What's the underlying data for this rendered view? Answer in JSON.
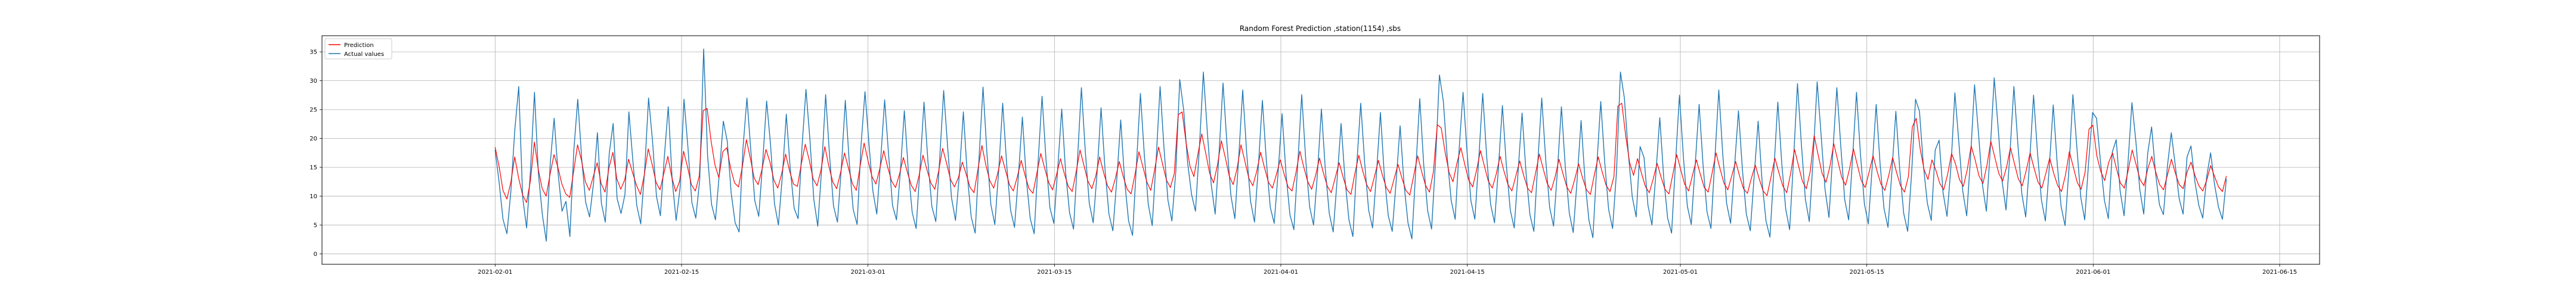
{
  "chart_data": {
    "type": "line",
    "title": "Random Forest Prediction ,station(1154) ,sbs",
    "xlabel": "",
    "ylabel": "",
    "x_range": [
      "2021-01-19",
      "2021-06-18"
    ],
    "ylim": [
      -1.8,
      37.8
    ],
    "x_tick_labels": [
      "2021-02-01",
      "2021-02-15",
      "2021-03-01",
      "2021-03-15",
      "2021-04-01",
      "2021-04-15",
      "2021-05-01",
      "2021-05-15",
      "2021-06-01",
      "2021-06-15"
    ],
    "y_ticks": [
      0,
      5,
      10,
      15,
      20,
      25,
      30,
      35
    ],
    "grid": true,
    "legend_position": "top-left",
    "data_start": "2021-02-01",
    "data_end": "2021-06-11",
    "series": [
      {
        "name": "Prediction",
        "color": "#ff0000",
        "values": [
          18.5,
          15.2,
          11.0,
          9.5,
          12.4,
          16.8,
          13.1,
          10.2,
          8.9,
          12.7,
          19.4,
          14.6,
          11.3,
          10.0,
          13.8,
          17.2,
          15.0,
          12.1,
          10.4,
          9.8,
          14.3,
          18.9,
          16.2,
          12.5,
          11.0,
          13.4,
          15.8,
          12.2,
          10.7,
          14.9,
          17.6,
          13.0,
          11.2,
          12.8,
          16.4,
          14.1,
          11.9,
          10.3,
          13.7,
          18.2,
          15.5,
          12.4,
          11.1,
          14.0,
          16.9,
          13.3,
          10.8,
          12.6,
          17.8,
          15.1,
          12.0,
          10.9,
          13.5,
          24.8,
          25.2,
          19.6,
          15.4,
          13.2,
          17.7,
          18.4,
          14.8,
          12.3,
          11.6,
          15.2,
          19.8,
          16.6,
          13.1,
          12.0,
          14.7,
          18.1,
          15.9,
          12.8,
          11.4,
          13.9,
          17.3,
          14.4,
          12.1,
          11.7,
          15.6,
          19.0,
          16.3,
          13.0,
          11.8,
          14.5,
          18.6,
          15.2,
          12.5,
          11.3,
          14.1,
          17.5,
          14.9,
          12.2,
          11.0,
          15.3,
          19.2,
          16.1,
          13.4,
          12.1,
          14.8,
          17.9,
          15.0,
          12.6,
          11.5,
          13.8,
          16.7,
          14.2,
          11.9,
          10.8,
          13.6,
          17.1,
          14.6,
          12.3,
          11.2,
          14.4,
          18.3,
          15.7,
          12.9,
          11.6,
          13.2,
          15.9,
          13.8,
          11.5,
          10.6,
          14.7,
          18.8,
          15.4,
          12.7,
          11.4,
          13.9,
          17.0,
          14.5,
          12.0,
          10.9,
          13.3,
          16.2,
          13.6,
          11.3,
          10.5,
          14.0,
          17.4,
          14.8,
          12.4,
          11.1,
          13.7,
          16.5,
          13.9,
          11.7,
          10.8,
          14.2,
          18.0,
          15.3,
          12.6,
          11.3,
          13.5,
          16.8,
          14.1,
          11.8,
          10.7,
          13.1,
          16.0,
          13.4,
          11.2,
          10.4,
          13.8,
          17.7,
          15.1,
          12.5,
          11.0,
          14.6,
          18.5,
          15.6,
          12.8,
          11.5,
          13.9,
          24.1,
          24.6,
          19.3,
          15.2,
          13.4,
          17.2,
          20.8,
          17.5,
          14.0,
          12.3,
          15.4,
          19.6,
          16.7,
          13.5,
          12.0,
          14.8,
          18.9,
          16.0,
          13.1,
          11.8,
          14.3,
          17.6,
          14.9,
          12.4,
          11.4,
          13.7,
          16.3,
          13.8,
          11.6,
          10.9,
          14.1,
          17.8,
          15.0,
          12.5,
          11.2,
          13.6,
          16.6,
          14.0,
          11.7,
          10.6,
          13.2,
          15.8,
          13.3,
          11.1,
          10.3,
          13.9,
          17.1,
          14.4,
          12.0,
          10.8,
          13.4,
          16.2,
          13.7,
          11.5,
          10.5,
          13.0,
          15.5,
          13.1,
          11.0,
          10.2,
          13.6,
          17.0,
          14.3,
          11.9,
          10.7,
          14.2,
          22.4,
          21.8,
          17.6,
          14.1,
          12.5,
          15.7,
          18.4,
          15.5,
          12.8,
          11.6,
          14.5,
          17.9,
          15.2,
          12.6,
          11.4,
          13.8,
          16.9,
          14.3,
          12.0,
          10.9,
          13.5,
          16.1,
          13.6,
          11.4,
          10.6,
          13.9,
          17.3,
          14.7,
          12.2,
          11.0,
          13.3,
          16.4,
          13.9,
          11.6,
          10.5,
          12.9,
          15.6,
          13.2,
          11.1,
          10.3,
          13.7,
          16.8,
          14.2,
          11.9,
          10.8,
          13.4,
          25.6,
          26.1,
          20.4,
          15.8,
          13.6,
          16.5,
          14.0,
          11.7,
          10.6,
          13.0,
          15.7,
          13.3,
          11.2,
          10.4,
          13.8,
          17.2,
          14.6,
          12.1,
          10.9,
          13.6,
          16.3,
          13.8,
          11.5,
          10.7,
          14.0,
          17.5,
          14.8,
          12.3,
          11.1,
          13.5,
          16.0,
          13.5,
          11.3,
          10.5,
          13.1,
          15.4,
          13.0,
          10.9,
          10.1,
          13.3,
          16.6,
          14.1,
          11.8,
          10.6,
          13.9,
          18.1,
          15.3,
          12.6,
          11.3,
          14.3,
          20.5,
          17.2,
          14.0,
          12.4,
          15.1,
          19.1,
          16.2,
          13.3,
          11.9,
          14.7,
          18.2,
          15.4,
          12.7,
          11.5,
          14.2,
          17.0,
          14.4,
          12.1,
          11.0,
          13.6,
          16.7,
          14.1,
          11.8,
          10.7,
          13.4,
          22.0,
          23.5,
          18.2,
          14.6,
          12.9,
          16.3,
          14.5,
          12.2,
          11.1,
          13.8,
          17.4,
          15.6,
          12.9,
          11.7,
          14.6,
          18.7,
          16.3,
          13.5,
          12.2,
          15.3,
          19.5,
          16.8,
          14.0,
          12.6,
          15.0,
          18.4,
          15.7,
          13.0,
          11.8,
          14.4,
          17.5,
          14.9,
          12.5,
          11.4,
          13.9,
          16.6,
          14.0,
          11.9,
          10.8,
          13.6,
          17.7,
          15.1,
          12.4,
          11.2,
          14.1,
          21.6,
          22.3,
          17.0,
          14.3,
          12.7,
          15.8,
          17.5,
          14.8,
          12.3,
          11.4,
          14.5,
          18.0,
          15.5,
          12.9,
          11.8,
          14.8,
          16.9,
          14.2,
          12.0,
          11.1,
          13.7,
          16.4,
          14.0,
          12.0,
          11.3,
          14.2,
          15.9,
          13.6,
          11.8,
          10.9,
          12.8,
          15.3,
          13.4,
          11.6,
          10.8,
          13.5
        ],
        "note_omit": "prediction values are resampled across the shown date span"
      },
      {
        "name": "Actual values",
        "color": "#1f77b4",
        "values": [
          18.0,
          12.5,
          6.0,
          3.5,
          10.8,
          21.5,
          29.0,
          9.8,
          4.5,
          14.6,
          28.0,
          13.9,
          6.8,
          2.2,
          15.6,
          23.5,
          14.0,
          7.4,
          9.1,
          3.0,
          17.9,
          26.8,
          16.5,
          9.0,
          6.4,
          12.2,
          21.0,
          8.8,
          5.5,
          17.4,
          22.6,
          9.6,
          7.0,
          10.3,
          24.6,
          16.2,
          8.4,
          5.2,
          14.5,
          27.0,
          19.6,
          10.0,
          6.6,
          16.8,
          25.5,
          12.8,
          5.8,
          11.4,
          26.8,
          18.5,
          8.9,
          6.2,
          12.9,
          35.5,
          17.0,
          8.6,
          5.9,
          14.1,
          23.0,
          19.5,
          10.5,
          5.4,
          3.8,
          18.4,
          27.0,
          17.8,
          9.2,
          6.5,
          15.9,
          26.5,
          18.9,
          8.7,
          5.0,
          13.5,
          24.2,
          14.8,
          7.9,
          6.1,
          18.6,
          28.5,
          19.9,
          9.4,
          4.8,
          14.9,
          27.6,
          17.0,
          8.3,
          5.5,
          15.0,
          26.6,
          15.9,
          7.7,
          5.1,
          18.8,
          28.1,
          19.2,
          10.9,
          6.9,
          16.4,
          26.7,
          17.2,
          8.4,
          5.9,
          14.3,
          24.8,
          14.6,
          7.2,
          4.4,
          15.1,
          26.3,
          16.0,
          8.2,
          5.6,
          16.6,
          28.3,
          18.6,
          9.7,
          5.8,
          13.8,
          24.6,
          13.7,
          6.4,
          3.6,
          16.8,
          28.9,
          17.4,
          8.5,
          5.1,
          14.6,
          26.1,
          15.6,
          7.6,
          4.6,
          13.6,
          23.7,
          13.0,
          6.1,
          3.5,
          15.9,
          27.3,
          16.4,
          8.0,
          5.3,
          14.9,
          25.1,
          14.1,
          7.1,
          4.3,
          16.2,
          28.8,
          17.7,
          8.8,
          5.4,
          14.1,
          25.3,
          14.7,
          6.9,
          4.0,
          12.9,
          23.2,
          12.6,
          5.7,
          3.2,
          15.6,
          27.8,
          17.1,
          8.6,
          4.9,
          16.3,
          29.0,
          18.3,
          9.3,
          5.7,
          14.3,
          30.2,
          24.9,
          15.8,
          10.3,
          7.4,
          18.5,
          31.5,
          21.2,
          12.0,
          6.9,
          17.6,
          29.6,
          19.0,
          10.1,
          6.1,
          16.9,
          28.4,
          17.6,
          9.1,
          5.5,
          15.4,
          26.6,
          16.2,
          8.1,
          5.3,
          14.1,
          24.3,
          13.9,
          6.8,
          4.2,
          15.7,
          27.6,
          16.5,
          8.2,
          5.0,
          14.0,
          25.1,
          14.6,
          7.0,
          3.8,
          12.9,
          22.6,
          12.9,
          5.9,
          3.0,
          15.6,
          26.1,
          15.7,
          7.6,
          4.5,
          13.9,
          24.5,
          13.5,
          6.6,
          3.9,
          12.6,
          22.2,
          12.1,
          5.4,
          2.6,
          14.8,
          26.9,
          15.5,
          7.5,
          4.3,
          16.0,
          31.0,
          26.4,
          16.5,
          9.2,
          6.0,
          18.1,
          28.0,
          17.8,
          9.2,
          6.0,
          16.5,
          27.8,
          16.9,
          8.6,
          5.4,
          15.0,
          25.7,
          15.4,
          7.6,
          4.5,
          14.3,
          24.4,
          14.1,
          6.8,
          3.9,
          15.9,
          27.0,
          16.4,
          8.1,
          4.8,
          14.6,
          25.5,
          14.9,
          7.1,
          3.7,
          12.9,
          23.1,
          12.7,
          5.8,
          2.8,
          15.4,
          26.4,
          15.9,
          7.7,
          4.4,
          14.2,
          31.5,
          27.0,
          17.5,
          9.9,
          6.4,
          18.6,
          16.7,
          8.4,
          5.0,
          13.8,
          23.6,
          13.2,
          6.2,
          3.6,
          15.8,
          27.5,
          16.8,
          8.3,
          5.1,
          15.4,
          25.9,
          15.4,
          7.3,
          4.4,
          16.5,
          28.4,
          17.3,
          8.7,
          5.3,
          15.1,
          24.8,
          14.6,
          6.9,
          4.0,
          13.6,
          23.0,
          12.5,
          5.7,
          2.9,
          14.6,
          26.3,
          15.7,
          7.8,
          4.2,
          16.4,
          29.5,
          18.9,
          9.5,
          5.6,
          16.9,
          29.8,
          20.6,
          11.2,
          6.3,
          17.8,
          28.8,
          18.7,
          9.4,
          5.9,
          16.6,
          28.0,
          17.3,
          8.7,
          5.2,
          15.2,
          25.9,
          15.5,
          7.8,
          4.6,
          14.3,
          24.7,
          14.5,
          7.0,
          3.9,
          13.9,
          26.8,
          24.7,
          15.3,
          8.8,
          5.8,
          18.0,
          19.7,
          10.6,
          6.5,
          15.1,
          27.9,
          19.4,
          10.9,
          6.6,
          16.9,
          29.3,
          20.9,
          12.0,
          7.4,
          18.2,
          30.5,
          21.8,
          12.6,
          7.6,
          17.5,
          29.0,
          19.1,
          10.5,
          6.4,
          16.0,
          27.5,
          17.5,
          9.3,
          5.7,
          15.1,
          25.8,
          15.7,
          8.2,
          4.9,
          14.8,
          27.6,
          18.5,
          9.8,
          5.9,
          16.0,
          24.5,
          23.5,
          16.0,
          9.3,
          6.1,
          17.6,
          19.8,
          10.9,
          6.6,
          15.8,
          26.2,
          19.5,
          11.1,
          6.9,
          17.4,
          22.0,
          14.0,
          8.5,
          6.8,
          15.1,
          21.0,
          15.4,
          9.6,
          6.9,
          16.8,
          18.7,
          12.5,
          8.4,
          6.2,
          13.4,
          17.5,
          12.0,
          8.1,
          6.0,
          13.0
        ],
        "note_omit": "actual values are resampled across the shown date span"
      }
    ]
  }
}
